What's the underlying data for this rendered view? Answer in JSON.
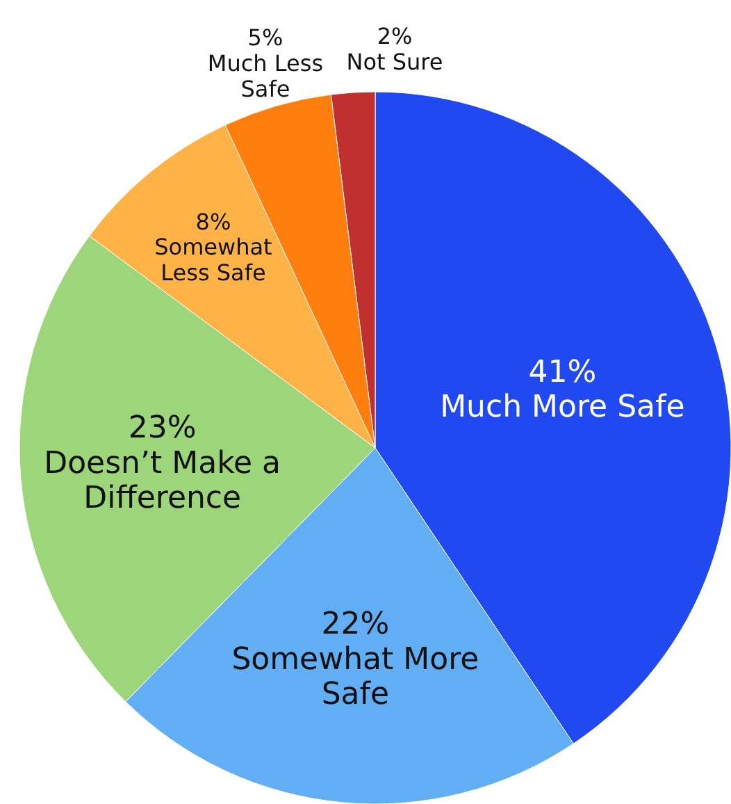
{
  "chart_data": {
    "type": "pie",
    "categories": [
      "Much More Safe",
      "Somewhat More Safe",
      "Doesn’t Make a Difference",
      "Somewhat Less Safe",
      "Much Less Safe",
      "Not Sure"
    ],
    "values": [
      41,
      22,
      23,
      8,
      5,
      2
    ],
    "colors": [
      "#2149f2",
      "#62aef5",
      "#9dd57a",
      "#ffb347",
      "#ff7f0e",
      "#c0302e"
    ],
    "value_labels": [
      "41%",
      "22%",
      "23%",
      "8%",
      "5%",
      "2%"
    ]
  }
}
